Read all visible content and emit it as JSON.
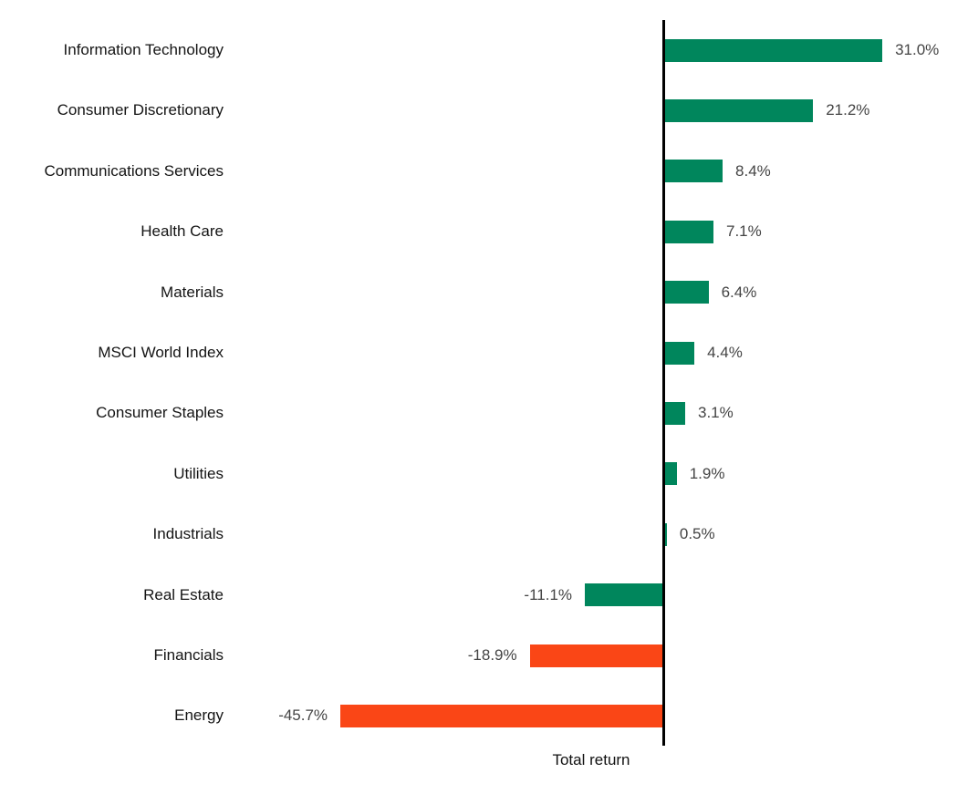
{
  "chart_data": {
    "type": "bar",
    "orientation": "horizontal",
    "title": "",
    "xlabel": "Total return",
    "ylabel": "",
    "grid": false,
    "zero_axis_line": true,
    "xlim": [
      -46,
      43
    ],
    "categories": [
      "Information Technology",
      "Consumer Discretionary",
      "Communications Services",
      "Health Care",
      "Materials",
      "MSCI World Index",
      "Consumer Staples",
      "Utilities",
      "Industrials",
      "Real Estate",
      "Financials",
      "Energy"
    ],
    "values": [
      31.0,
      21.2,
      8.4,
      7.1,
      6.4,
      4.4,
      3.1,
      1.9,
      0.5,
      -11.1,
      -18.9,
      -45.7
    ],
    "value_labels": [
      "31.0%",
      "21.2%",
      "8.4%",
      "7.1%",
      "6.4%",
      "4.4%",
      "3.1%",
      "1.9%",
      "0.5%",
      "-11.1%",
      "-18.9%",
      "-45.7%"
    ],
    "bar_colors": [
      "green",
      "green",
      "green",
      "green",
      "green",
      "green",
      "green",
      "green",
      "green",
      "green",
      "orange",
      "orange"
    ],
    "palette": {
      "green": "#00865C",
      "orange": "#FA4616"
    },
    "text_colors": {
      "category_label": "#141414",
      "value_label": "#444444",
      "axis": "#000000"
    }
  }
}
